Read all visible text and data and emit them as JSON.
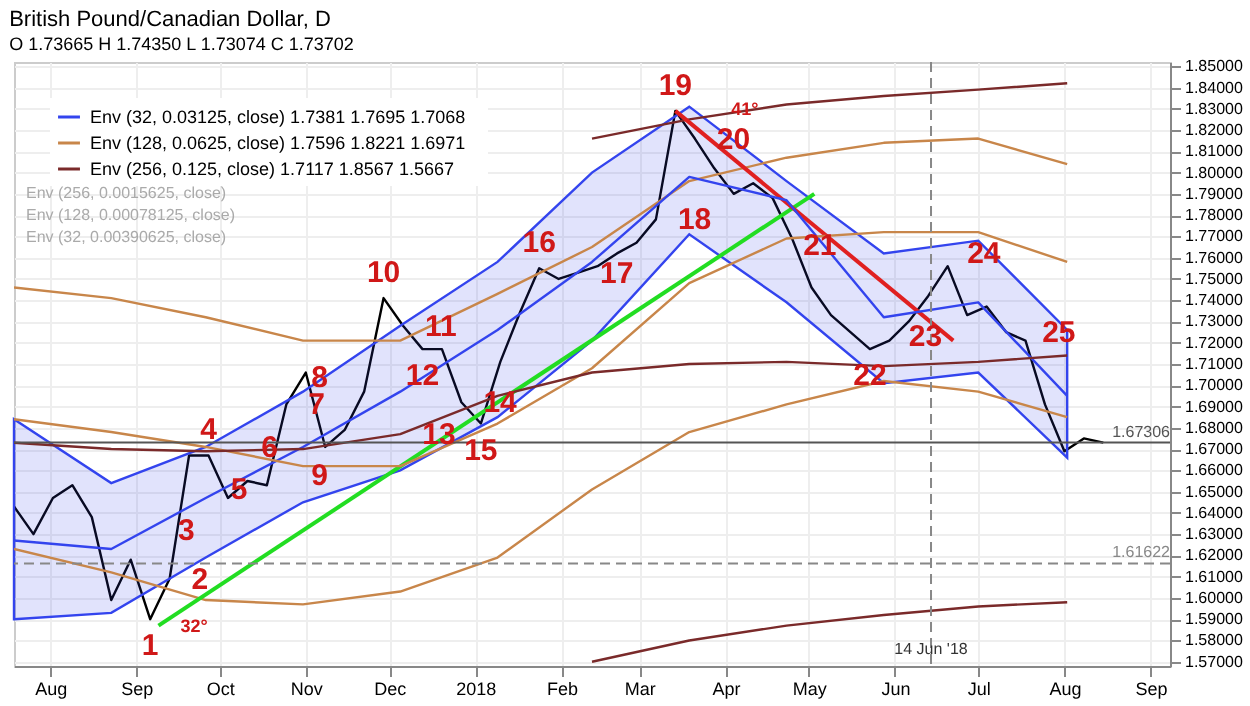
{
  "chart_data": {
    "type": "line",
    "title": "British Pound/Canadian Dollar, D",
    "subtitle": "O 1.73665  H 1.74350  L 1.73074  C 1.73702",
    "x": [
      "2017-07-19",
      "2017-08-23",
      "2017-09-26",
      "2017-10-31",
      "2017-12-05",
      "2018-01-09",
      "2018-02-12",
      "2018-03-19",
      "2018-04-23",
      "2018-05-28",
      "2018-07-01",
      "2018-08-02"
    ],
    "xlim": [
      "2017-07-19",
      "2018-09-08"
    ],
    "xticks": [
      {
        "value": "2017-08-01",
        "label": "Aug"
      },
      {
        "value": "2017-09-01",
        "label": "Sep"
      },
      {
        "value": "2017-10-01",
        "label": "Oct"
      },
      {
        "value": "2017-11-01",
        "label": "Nov"
      },
      {
        "value": "2017-12-01",
        "label": "Dec"
      },
      {
        "value": "2018-01-01",
        "label": "2018"
      },
      {
        "value": "2018-02-01",
        "label": "Feb"
      },
      {
        "value": "2018-03-01",
        "label": "Mar"
      },
      {
        "value": "2018-04-01",
        "label": "Apr"
      },
      {
        "value": "2018-05-01",
        "label": "May"
      },
      {
        "value": "2018-06-01",
        "label": "Jun"
      },
      {
        "value": "2018-07-01",
        "label": "Jul"
      },
      {
        "value": "2018-08-01",
        "label": "Aug"
      },
      {
        "value": "2018-09-01",
        "label": "Sep"
      }
    ],
    "ylim": [
      1.568,
      1.852
    ],
    "yticks": [
      {
        "value": 1.57,
        "label": "1.57000"
      },
      {
        "value": 1.58,
        "label": "1.58000"
      },
      {
        "value": 1.59,
        "label": "1.59000"
      },
      {
        "value": 1.6,
        "label": "1.60000"
      },
      {
        "value": 1.61,
        "label": "1.61000"
      },
      {
        "value": 1.62,
        "label": "1.62000"
      },
      {
        "value": 1.63,
        "label": "1.63000"
      },
      {
        "value": 1.64,
        "label": "1.64000"
      },
      {
        "value": 1.65,
        "label": "1.65000"
      },
      {
        "value": 1.66,
        "label": "1.66000"
      },
      {
        "value": 1.67,
        "label": "1.67000"
      },
      {
        "value": 1.68,
        "label": "1.68000"
      },
      {
        "value": 1.69,
        "label": "1.69000"
      },
      {
        "value": 1.7,
        "label": "1.70000"
      },
      {
        "value": 1.71,
        "label": "1.71000"
      },
      {
        "value": 1.72,
        "label": "1.72000"
      },
      {
        "value": 1.73,
        "label": "1.73000"
      },
      {
        "value": 1.74,
        "label": "1.74000"
      },
      {
        "value": 1.75,
        "label": "1.75000"
      },
      {
        "value": 1.76,
        "label": "1.76000"
      },
      {
        "value": 1.77,
        "label": "1.77000"
      },
      {
        "value": 1.78,
        "label": "1.78000"
      },
      {
        "value": 1.79,
        "label": "1.79000"
      },
      {
        "value": 1.8,
        "label": "1.80000"
      },
      {
        "value": 1.81,
        "label": "1.81000"
      },
      {
        "value": 1.82,
        "label": "1.82000"
      },
      {
        "value": 1.83,
        "label": "1.83000"
      },
      {
        "value": 1.84,
        "label": "1.84000"
      },
      {
        "value": 1.85,
        "label": "1.85000"
      }
    ],
    "grid": true,
    "legend": "top left",
    "series": [
      {
        "color": "#000000",
        "x": [
          "2017-07-19",
          "2017-07-26",
          "2017-08-02",
          "2017-08-09",
          "2017-08-16",
          "2017-08-23",
          "2017-08-30",
          "2017-09-06",
          "2017-09-13",
          "2017-09-20",
          "2017-09-27",
          "2017-10-04",
          "2017-10-11",
          "2017-10-18",
          "2017-10-25",
          "2017-11-01",
          "2017-11-08",
          "2017-11-15",
          "2017-11-22",
          "2017-11-29",
          "2017-12-06",
          "2017-12-13",
          "2017-12-20",
          "2017-12-27",
          "2018-01-03",
          "2018-01-10",
          "2018-01-17",
          "2018-01-24",
          "2018-01-31",
          "2018-02-07",
          "2018-02-14",
          "2018-02-21",
          "2018-02-28",
          "2018-03-07",
          "2018-03-14",
          "2018-03-21",
          "2018-03-28",
          "2018-04-04",
          "2018-04-11",
          "2018-04-18",
          "2018-04-25",
          "2018-05-02",
          "2018-05-09",
          "2018-05-16",
          "2018-05-23",
          "2018-05-30",
          "2018-06-06",
          "2018-06-13",
          "2018-06-20",
          "2018-06-27",
          "2018-07-04",
          "2018-07-11",
          "2018-07-18",
          "2018-07-25",
          "2018-08-01",
          "2018-08-08",
          "2018-08-15"
        ],
        "values": [
          1.643,
          1.63,
          1.647,
          1.653,
          1.638,
          1.599,
          1.618,
          1.59,
          1.609,
          1.667,
          1.667,
          1.647,
          1.655,
          1.653,
          1.691,
          1.706,
          1.671,
          1.679,
          1.697,
          1.741,
          1.728,
          1.717,
          1.717,
          1.692,
          1.682,
          1.711,
          1.734,
          1.755,
          1.75,
          1.753,
          1.756,
          1.762,
          1.767,
          1.778,
          1.829,
          1.816,
          1.802,
          1.79,
          1.795,
          1.788,
          1.769,
          1.746,
          1.733,
          1.725,
          1.717,
          1.721,
          1.73,
          1.742,
          1.756,
          1.733,
          1.737,
          1.725,
          1.721,
          1.691,
          1.669,
          1.675,
          1.673
        ]
      },
      {
        "name": "Env (32, 0.03125, close)  1.7381  1.7695  1.7068",
        "color": "#3344ee",
        "values": [
          1.627,
          1.623,
          1.647,
          1.671,
          1.697,
          1.726,
          1.758,
          1.798,
          1.787,
          1.732,
          1.739,
          1.695
        ],
        "lower": [
          1.59,
          1.593,
          1.619,
          1.645,
          1.66,
          1.685,
          1.721,
          1.771,
          1.739,
          1.701,
          1.706,
          1.666
        ],
        "upper": [
          1.684,
          1.654,
          1.671,
          1.697,
          1.728,
          1.758,
          1.8,
          1.831,
          1.796,
          1.762,
          1.768,
          1.726
        ]
      },
      {
        "name": "Env (128, 0.0625, close)  1.7596  1.8221  1.6971",
        "color": "#c8864a",
        "values": [
          1.684,
          1.678,
          1.671,
          1.662,
          1.662,
          1.682,
          1.708,
          1.748,
          1.769,
          1.772,
          1.772,
          1.758
        ]
      },
      {
        "color": "#c8864a",
        "values": [
          1.746,
          1.741,
          1.732,
          1.721,
          1.721,
          1.743,
          1.765,
          1.796,
          1.807,
          1.814,
          1.816,
          1.804
        ]
      },
      {
        "color": "#c8864a",
        "values": [
          1.623,
          1.612,
          1.599,
          1.597,
          1.603,
          1.619,
          1.651,
          1.678,
          1.691,
          1.702,
          1.697,
          1.685
        ]
      },
      {
        "name": "Env (256, 0.125, close)  1.7117  1.8567  1.5667",
        "color": "#7a2a2a",
        "values": [
          1.673,
          1.67,
          1.669,
          1.67,
          1.677,
          1.695,
          1.706,
          1.71,
          1.711,
          1.709,
          1.711,
          1.714
        ]
      },
      {
        "color": "#7a2a2a",
        "values": [
          null,
          null,
          null,
          null,
          null,
          null,
          1.816,
          1.825,
          1.832,
          1.836,
          1.839,
          1.842
        ]
      },
      {
        "color": "#7a2a2a",
        "values": [
          null,
          null,
          null,
          null,
          null,
          null,
          1.57,
          1.58,
          1.587,
          1.592,
          1.596,
          1.598
        ]
      },
      {
        "type": "line",
        "color": "#22dd22",
        "x": [
          "2017-09-09",
          "2018-05-03"
        ],
        "values": [
          1.587,
          1.79
        ]
      },
      {
        "type": "line",
        "color": "#e02020",
        "x": [
          "2018-03-14",
          "2018-06-22"
        ],
        "values": [
          1.829,
          1.721
        ]
      }
    ],
    "ref_lines": [
      {
        "axis": "y",
        "value": 1.67306,
        "label": "1.67306",
        "color": "#555555",
        "line_style": "solid"
      },
      {
        "axis": "y",
        "value": 1.61622,
        "label": "1.61622",
        "color": "#888888",
        "line_style": "dashed"
      },
      {
        "axis": "x",
        "value": "2018-06-14",
        "label": "14 Jun '18",
        "color": "#888888",
        "line_style": "dashed"
      }
    ],
    "annotations": [
      "Env (256, 0.0015625, close)",
      "Env (128, 0.00078125, close)",
      "Env (32, 0.00390625, close)",
      {
        "text": "1",
        "x": "2017-09-06",
        "y": 1.59
      },
      {
        "text": "2",
        "x": "2017-09-13",
        "y": 1.609
      },
      {
        "text": "3",
        "x": "2017-09-19",
        "y": 1.632
      },
      {
        "text": "4",
        "x": "2017-09-27",
        "y": 1.667
      },
      {
        "text": "5",
        "x": "2017-10-08",
        "y": 1.651
      },
      {
        "text": "6",
        "x": "2017-10-19",
        "y": 1.671
      },
      {
        "text": "7",
        "x": "2017-10-25",
        "y": 1.691
      },
      {
        "text": "8",
        "x": "2017-11-06",
        "y": 1.704
      },
      {
        "text": "9",
        "x": "2017-11-06",
        "y": 1.658
      },
      {
        "text": "10",
        "x": "2017-11-29",
        "y": 1.741
      },
      {
        "text": "11",
        "x": "2017-12-06",
        "y": 1.728
      },
      {
        "text": "12",
        "x": "2017-12-13",
        "y": 1.717
      },
      {
        "text": "13",
        "x": "2017-12-05",
        "y": 1.677
      },
      {
        "text": "14",
        "x": "2017-12-27",
        "y": 1.692
      },
      {
        "text": "15",
        "x": "2018-01-03",
        "y": 1.682
      },
      {
        "text": "16",
        "x": "2018-01-24",
        "y": 1.755
      },
      {
        "text": "17",
        "x": "2018-02-07",
        "y": 1.753
      },
      {
        "text": "18",
        "x": "2018-03-07",
        "y": 1.778
      },
      {
        "text": "19",
        "x": "2018-03-14",
        "y": 1.829
      },
      {
        "text": "20",
        "x": "2018-03-21",
        "y": 1.816
      },
      {
        "text": "21",
        "x": "2018-05-05",
        "y": 1.766
      },
      {
        "text": "22",
        "x": "2018-05-23",
        "y": 1.717
      },
      {
        "text": "23",
        "x": "2018-06-12",
        "y": 1.723
      },
      {
        "text": "24",
        "x": "2018-07-03",
        "y": 1.762
      },
      {
        "text": "25",
        "x": "2018-07-30",
        "y": 1.725
      },
      {
        "text": "32°",
        "x": "2017-09-09",
        "y": 1.587
      },
      {
        "text": "41°",
        "x": "2018-04-08",
        "y": 1.83
      }
    ]
  }
}
